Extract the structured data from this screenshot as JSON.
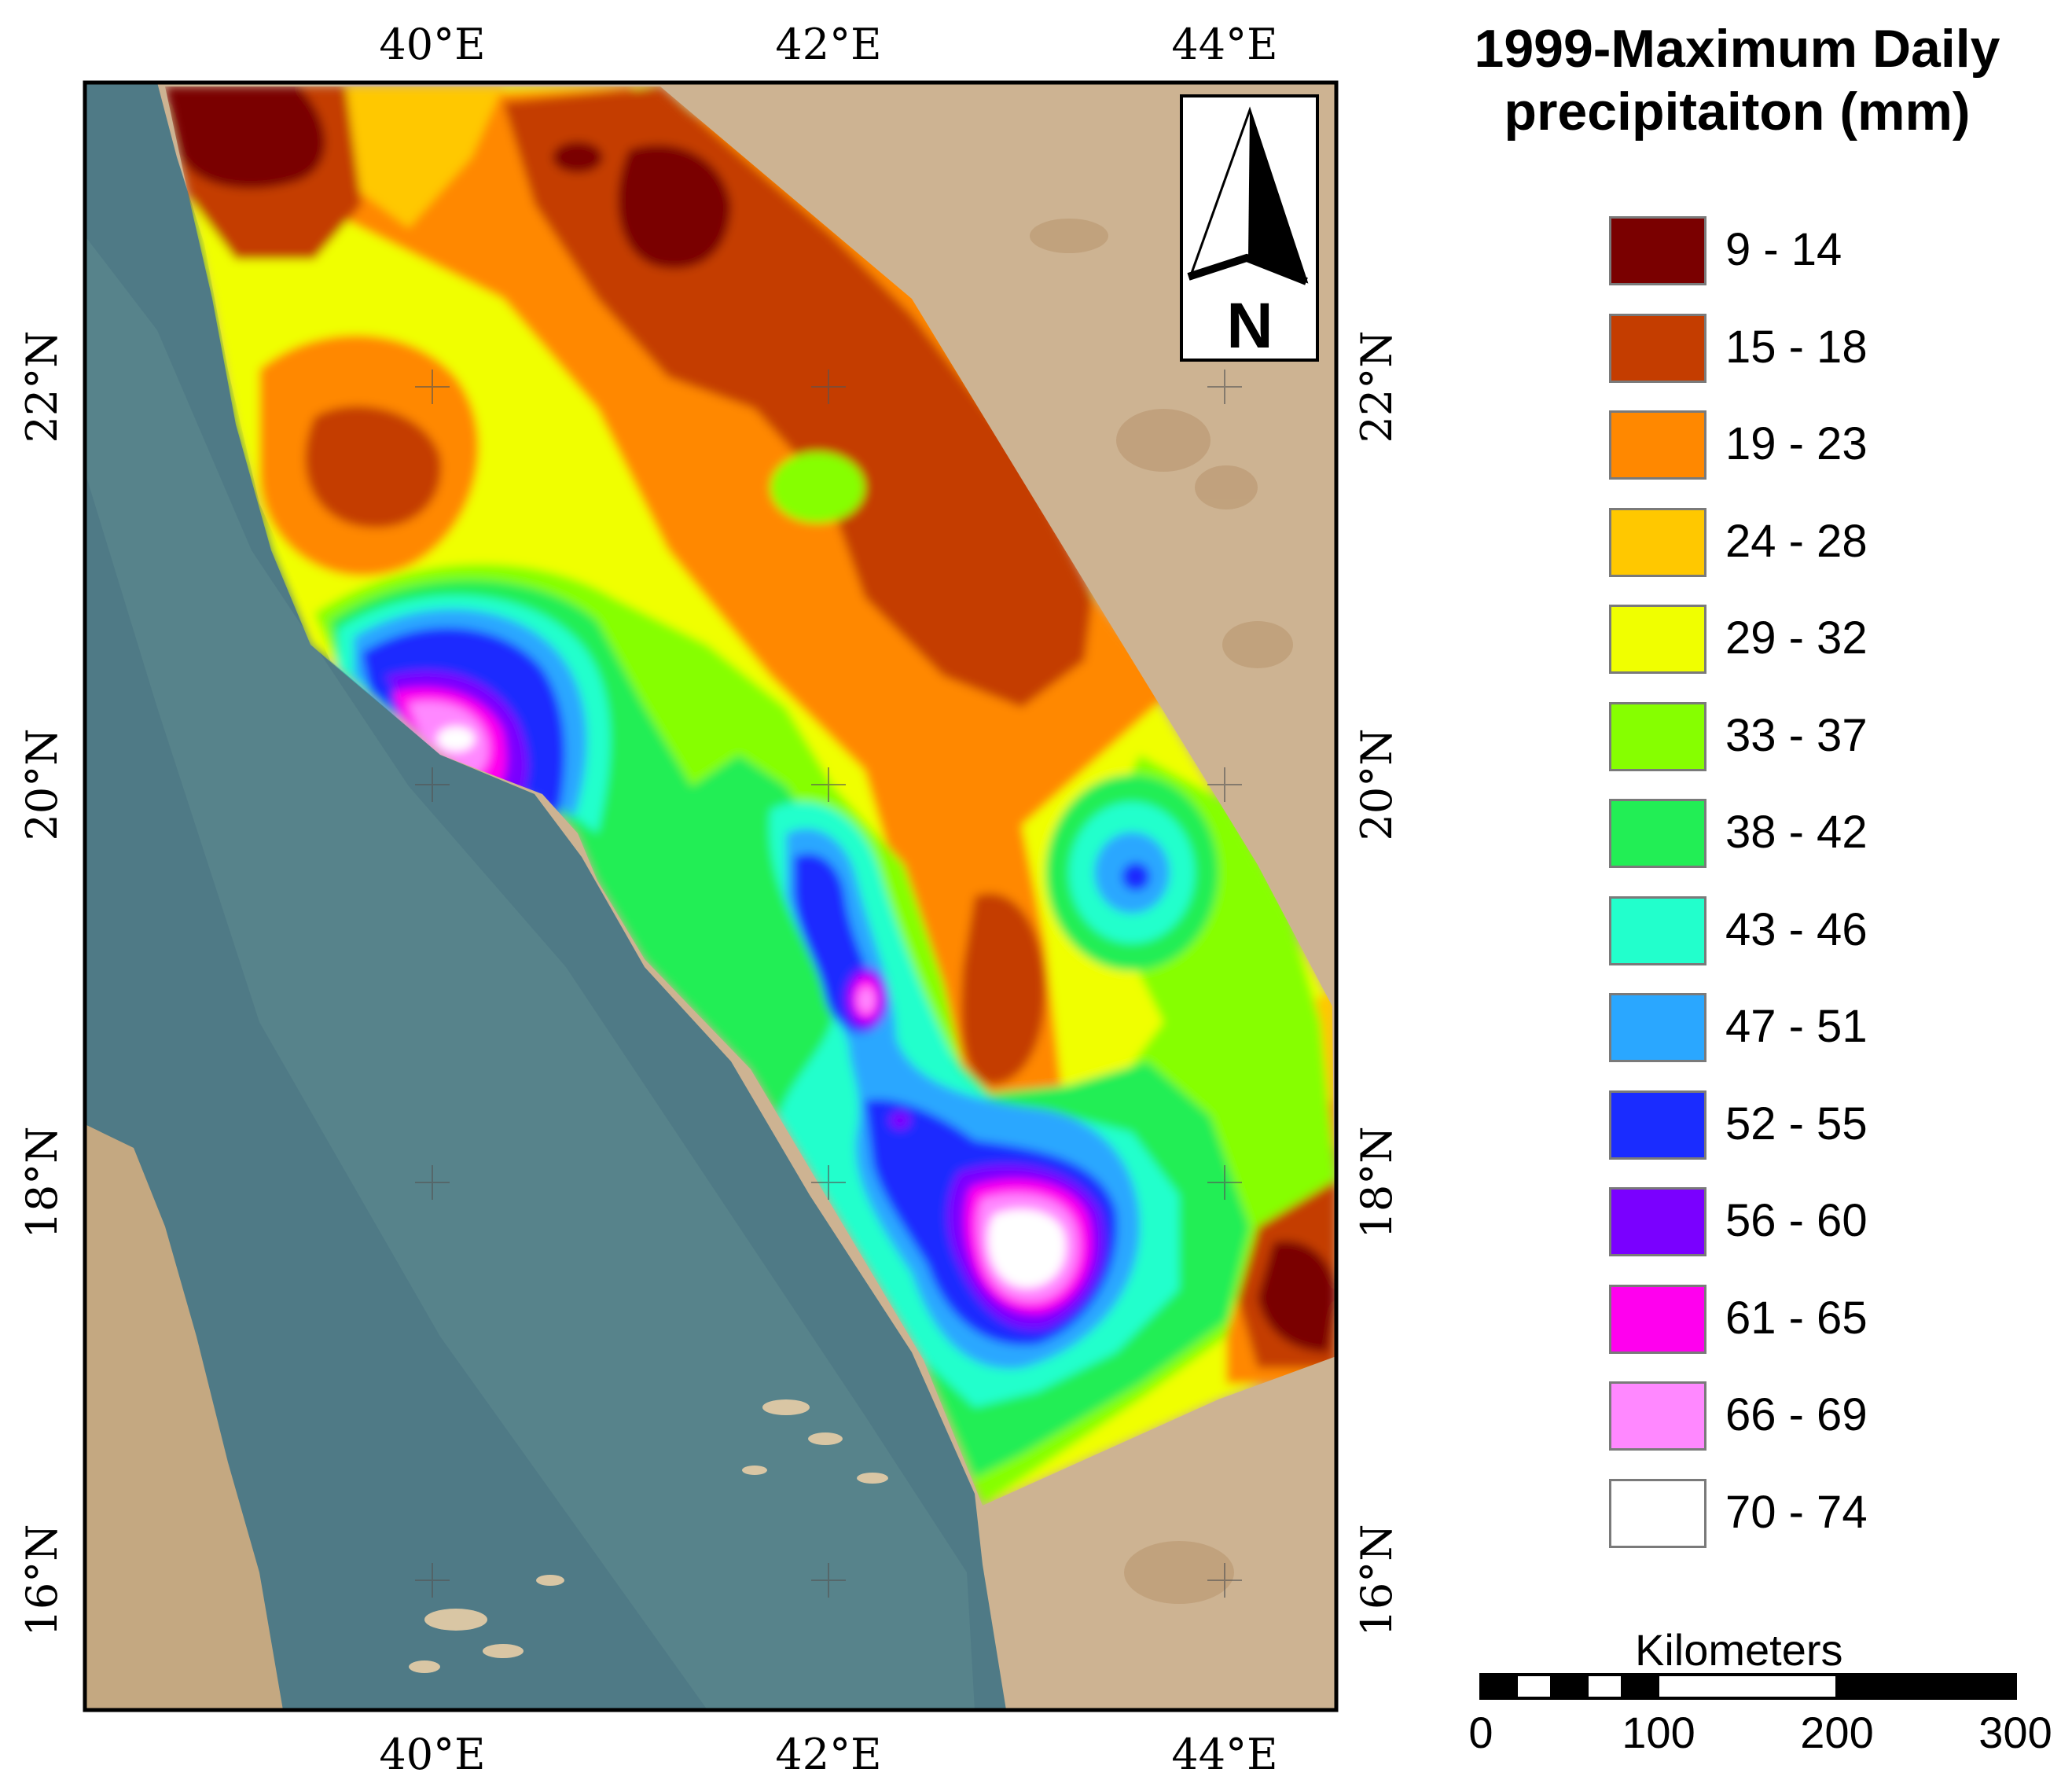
{
  "map": {
    "coords": {
      "lon_top": [
        "40°E",
        "42°E",
        "44°E"
      ],
      "lon_bottom": [
        "40°E",
        "42°E",
        "44°E"
      ],
      "lat_left": [
        "22°N",
        "20°N",
        "18°N",
        "16°N"
      ],
      "lat_right": [
        "22°N",
        "20°N",
        "18°N",
        "16°N"
      ]
    },
    "north_arrow": {
      "letter": "N",
      "icon": "north-arrow-icon"
    }
  },
  "legend": {
    "title_line1": "1999-Maximum Daily",
    "title_line2": "precipitaiton (mm)",
    "classes": [
      {
        "label": "9 - 14",
        "color": "#7a0000"
      },
      {
        "label": "15 - 18",
        "color": "#c43d00"
      },
      {
        "label": "19 - 23",
        "color": "#ff8800"
      },
      {
        "label": "24 - 28",
        "color": "#ffc800"
      },
      {
        "label": "29 - 32",
        "color": "#f0ff00"
      },
      {
        "label": "33 - 37",
        "color": "#86ff00"
      },
      {
        "label": "38 - 42",
        "color": "#22ee55"
      },
      {
        "label": "43 - 46",
        "color": "#22ffcc"
      },
      {
        "label": "47 - 51",
        "color": "#2aa7ff"
      },
      {
        "label": "52 - 55",
        "color": "#1a2cff"
      },
      {
        "label": "56 - 60",
        "color": "#7a00ff"
      },
      {
        "label": "61 - 65",
        "color": "#ff00ee"
      },
      {
        "label": "66 - 69",
        "color": "#ff88ff"
      },
      {
        "label": "70 - 74",
        "color": "#ffffff"
      }
    ]
  },
  "scalebar": {
    "unit": "Kilometers",
    "labels": [
      "0",
      "100",
      "200",
      "300"
    ]
  },
  "colors": {
    "sea": "#4f7a86",
    "land": "#cdb392"
  }
}
